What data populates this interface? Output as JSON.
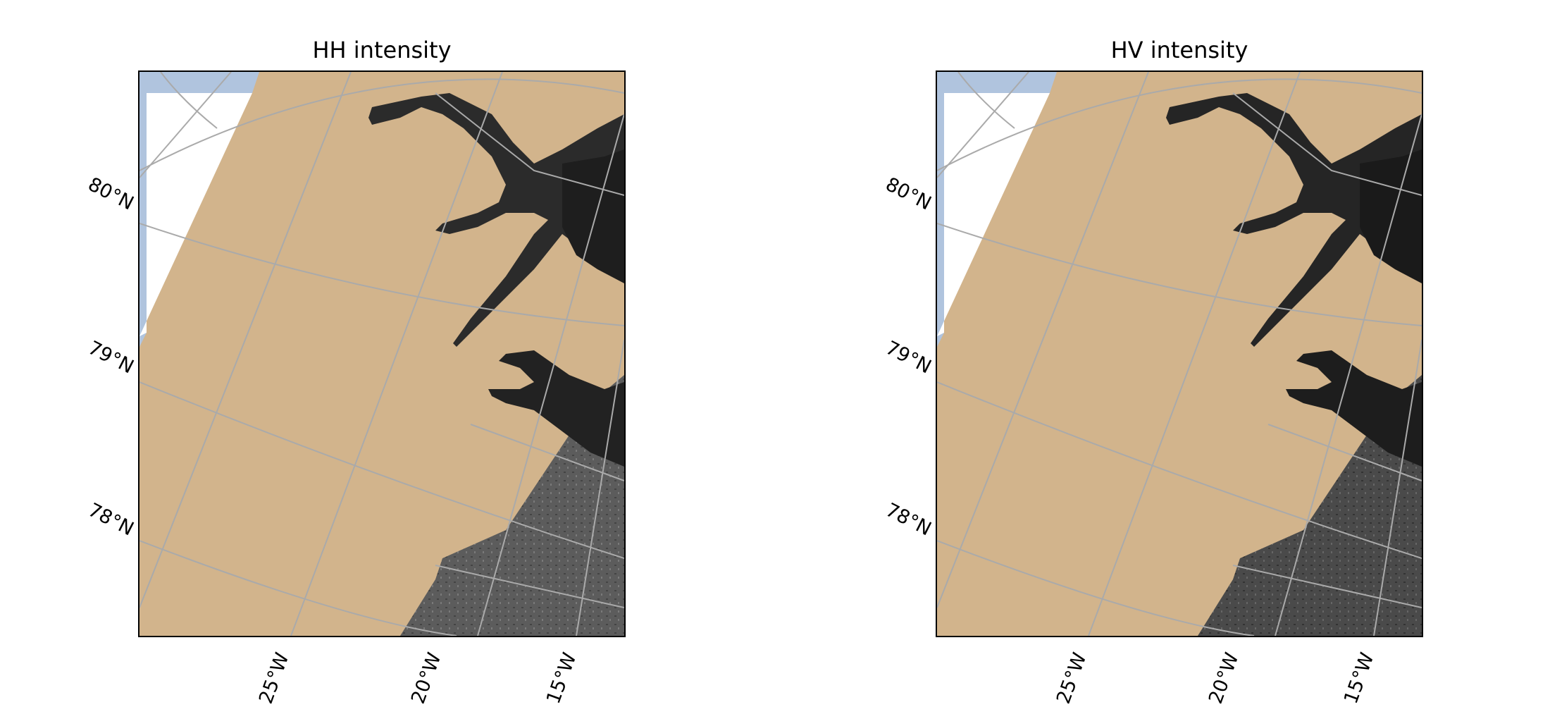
{
  "panels": [
    {
      "title": "HH intensity",
      "image_mode": "HH"
    },
    {
      "title": "HV intensity",
      "image_mode": "HV"
    }
  ],
  "latitude_labels": [
    "80°N",
    "79°N",
    "78°N"
  ],
  "longitude_labels": [
    "25°W",
    "20°W",
    "15°W"
  ],
  "colors": {
    "land": "#d2b48c",
    "ocean_edge": "#b0c4de",
    "no_data": "#ffffff",
    "gridline": "#aaaaaa",
    "sar_dark": "#1a1a1a",
    "sar_mid": "#5a5a5a",
    "sar_light": "#8a8a8a"
  }
}
